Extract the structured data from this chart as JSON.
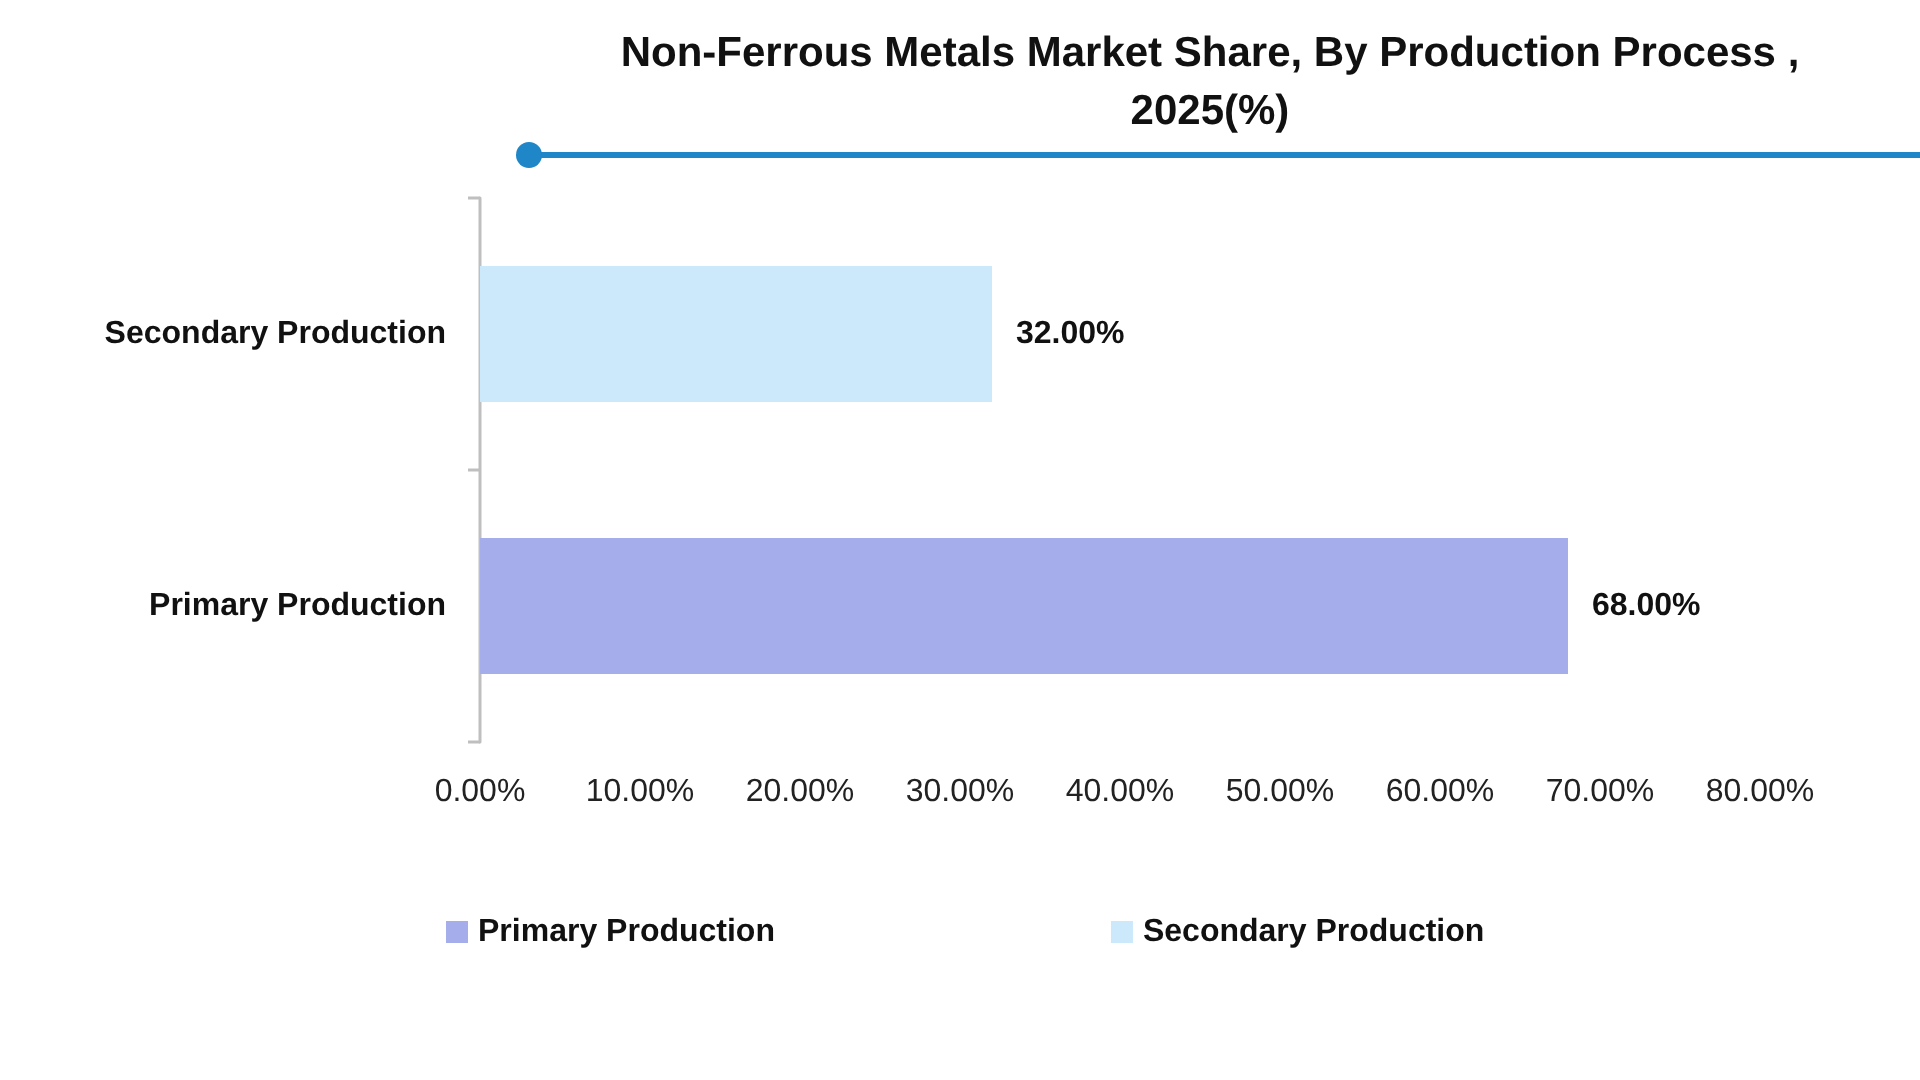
{
  "chart_data": {
    "type": "bar",
    "orientation": "horizontal",
    "stacked": true,
    "title": "Non-Ferrous Metals Market Share, By Production Process , 2025(%)",
    "categories": [
      "Secondary Production",
      "Primary Production"
    ],
    "series": [
      {
        "name": "Primary Production",
        "color": "#a5aeea",
        "values": [
          null,
          68
        ],
        "value_labels": [
          null,
          "68.00%"
        ]
      },
      {
        "name": "Secondary Production",
        "color": "#cce8fb",
        "values": [
          32,
          null
        ],
        "value_labels": [
          "32.00%",
          null
        ]
      }
    ],
    "xlim": [
      0,
      80
    ],
    "xticks": [
      {
        "value": 0,
        "label": "0.00%"
      },
      {
        "value": 10,
        "label": "10.00%"
      },
      {
        "value": 20,
        "label": "20.00%"
      },
      {
        "value": 30,
        "label": "30.00%"
      },
      {
        "value": 40,
        "label": "40.00%"
      },
      {
        "value": 50,
        "label": "50.00%"
      },
      {
        "value": 60,
        "label": "60.00%"
      },
      {
        "value": 70,
        "label": "70.00%"
      },
      {
        "value": 80,
        "label": "80.00%"
      }
    ],
    "grid": false,
    "legend": "bottom"
  }
}
